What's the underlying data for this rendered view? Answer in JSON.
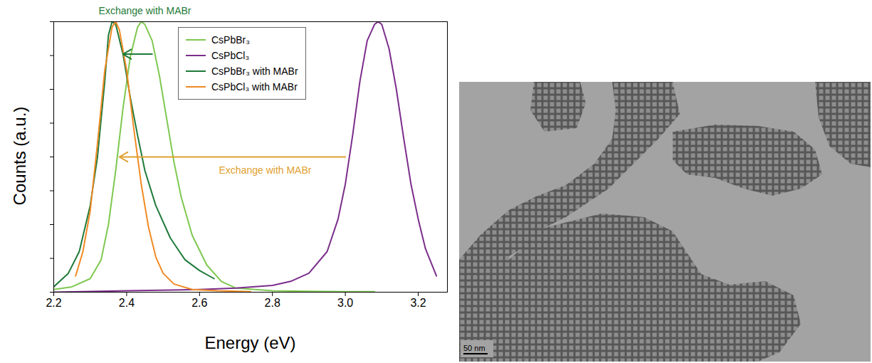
{
  "chart_data": {
    "type": "line",
    "xlabel": "Energy (eV)",
    "ylabel": "Counts (a.u.)",
    "xlim": [
      2.2,
      3.28
    ],
    "ylim": [
      0,
      1.0
    ],
    "xticks": [
      2.2,
      2.4,
      2.6,
      2.8,
      {
        "value": 3.0,
        "label": "3.0"
      },
      3.2
    ],
    "yticks": [
      0,
      0.125,
      0.25,
      0.375,
      0.5,
      0.625,
      0.75,
      0.875,
      1.0
    ],
    "tick_labels": "x",
    "legend": "top",
    "series": [
      {
        "name": "CsPbBr₃",
        "color": "#7ec850",
        "x": [
          2.2,
          2.25,
          2.3,
          2.33,
          2.35,
          2.37,
          2.39,
          2.41,
          2.43,
          2.44,
          2.45,
          2.47,
          2.49,
          2.51,
          2.53,
          2.55,
          2.58,
          2.62,
          2.66,
          2.7,
          2.8,
          2.9,
          3.0,
          3.08
        ],
        "values": [
          0.01,
          0.02,
          0.05,
          0.12,
          0.25,
          0.45,
          0.68,
          0.87,
          0.98,
          1.0,
          0.99,
          0.93,
          0.8,
          0.64,
          0.48,
          0.35,
          0.21,
          0.1,
          0.04,
          0.015,
          0.005,
          0.003,
          0.002,
          0.002
        ]
      },
      {
        "name": "CsPbCl₃",
        "color": "#7b2d8b",
        "x": [
          2.2,
          2.4,
          2.6,
          2.7,
          2.8,
          2.85,
          2.9,
          2.95,
          2.98,
          3.0,
          3.02,
          3.04,
          3.06,
          3.08,
          3.09,
          3.1,
          3.12,
          3.14,
          3.16,
          3.18,
          3.2,
          3.22,
          3.25
        ],
        "values": [
          0.0,
          0.005,
          0.01,
          0.015,
          0.025,
          0.04,
          0.07,
          0.15,
          0.27,
          0.4,
          0.58,
          0.78,
          0.93,
          0.99,
          1.0,
          0.99,
          0.9,
          0.75,
          0.57,
          0.4,
          0.27,
          0.16,
          0.06
        ]
      },
      {
        "name": "CsPbBr₃ with MABr",
        "color": "#1f7a3a",
        "x": [
          2.2,
          2.24,
          2.27,
          2.3,
          2.32,
          2.34,
          2.35,
          2.36,
          2.37,
          2.39,
          2.41,
          2.43,
          2.45,
          2.48,
          2.52,
          2.56,
          2.6,
          2.64
        ],
        "values": [
          0.02,
          0.07,
          0.15,
          0.32,
          0.5,
          0.78,
          0.95,
          1.0,
          0.99,
          0.88,
          0.72,
          0.58,
          0.45,
          0.32,
          0.2,
          0.12,
          0.08,
          0.05
        ]
      },
      {
        "name": "CsPbCl₃ with MABr",
        "color": "#f08a24",
        "x": [
          2.26,
          2.28,
          2.3,
          2.32,
          2.34,
          2.36,
          2.37,
          2.38,
          2.4,
          2.42,
          2.44,
          2.46,
          2.48,
          2.5,
          2.53,
          2.58,
          2.65,
          2.74
        ],
        "values": [
          0.06,
          0.15,
          0.3,
          0.55,
          0.82,
          0.98,
          1.0,
          0.97,
          0.82,
          0.6,
          0.4,
          0.24,
          0.13,
          0.07,
          0.03,
          0.01,
          0.005,
          0.002
        ]
      }
    ],
    "annotations": [
      {
        "text": "Exchange with MABr",
        "color": "#1f7a3a",
        "x": 2.45,
        "y": 1.04,
        "arrow": {
          "x1": 2.47,
          "y1": 0.88,
          "x2": 2.39,
          "y2": 0.88
        }
      },
      {
        "text": "Exchange with MABr",
        "color": "#e0a030",
        "x": 2.78,
        "y": 0.45,
        "arrow": {
          "x1": 3.0,
          "y1": 0.5,
          "x2": 2.38,
          "y2": 0.5
        }
      }
    ]
  },
  "micrograph": {
    "scale_bar": "50 nm"
  }
}
